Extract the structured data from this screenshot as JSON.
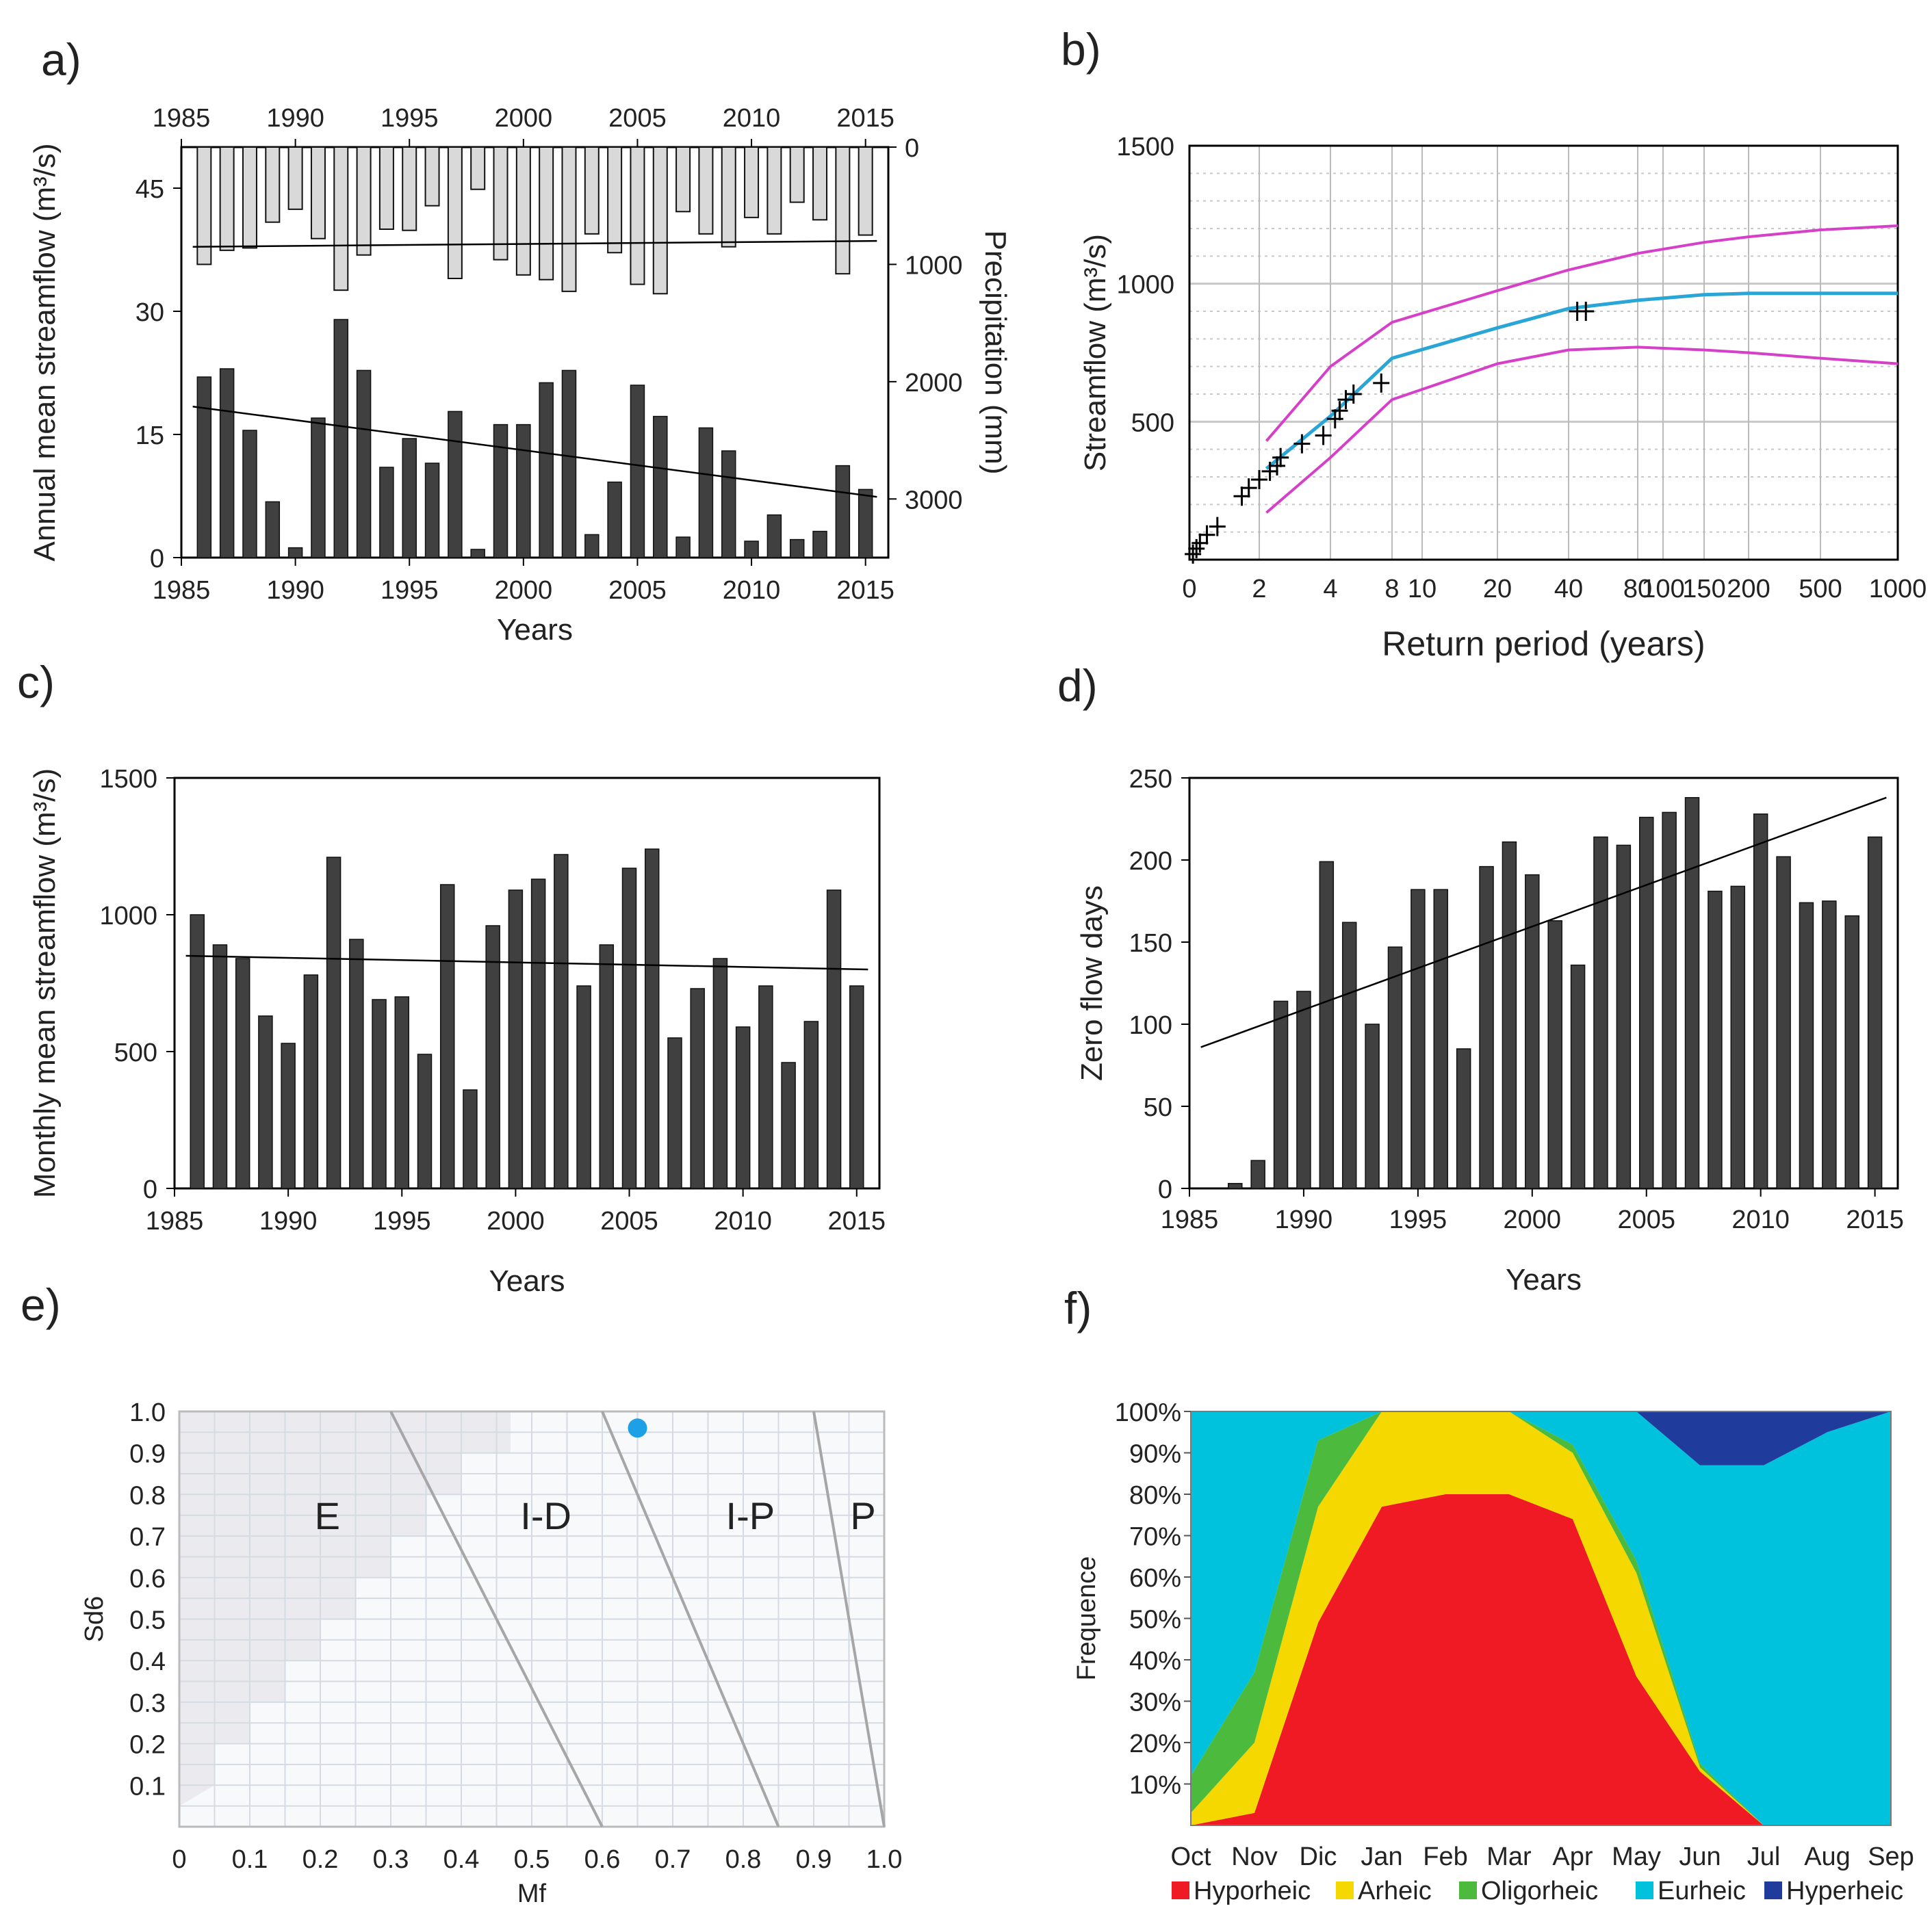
{
  "panel_labels": [
    "a)",
    "b)",
    "c)",
    "d)",
    "e)",
    "f)"
  ],
  "chart_data": [
    {
      "panel": "a",
      "type": "bar",
      "xlabel": "Years",
      "ylabel": "Annual mean streamflow (m³/s)",
      "ylabel_right": "Precipitation (mm)",
      "xlim": [
        1985,
        2016
      ],
      "ylim": [
        0,
        50
      ],
      "y2lim": [
        0,
        3500
      ],
      "xticks": [
        "1985",
        "1990",
        "1995",
        "2000",
        "2005",
        "2010",
        "2015"
      ],
      "yticks": [
        "0",
        "15",
        "30",
        "45"
      ],
      "y2ticks": [
        "0",
        "1000",
        "2000",
        "3000"
      ],
      "years": [
        1986,
        1987,
        1988,
        1989,
        1990,
        1991,
        1992,
        1993,
        1994,
        1995,
        1996,
        1997,
        1998,
        1999,
        2000,
        2001,
        2002,
        2003,
        2004,
        2005,
        2006,
        2007,
        2008,
        2009,
        2010,
        2011,
        2012,
        2013,
        2014,
        2015
      ],
      "streamflow": [
        22,
        23,
        15.5,
        6.8,
        1.2,
        17,
        29,
        22.8,
        11,
        14.5,
        11.5,
        17.8,
        1,
        16.2,
        16.2,
        21.3,
        22.8,
        2.8,
        9.2,
        21,
        17.2,
        2.5,
        15.8,
        13,
        2,
        5.2,
        2.2,
        3.2,
        11.2,
        8.3
      ],
      "precipitation": [
        1000,
        880,
        860,
        640,
        530,
        780,
        1220,
        920,
        700,
        710,
        500,
        1120,
        360,
        960,
        1090,
        1130,
        1230,
        740,
        900,
        1170,
        1250,
        550,
        740,
        850,
        600,
        740,
        470,
        620,
        1080,
        750
      ],
      "streamflow_trend": [
        18.4,
        7.4
      ],
      "precipitation_trend": [
        850,
        800
      ]
    },
    {
      "panel": "b",
      "type": "line",
      "xlabel": "Return period (years)",
      "ylabel": "Streamflow (m³/s)",
      "ylim": [
        0,
        1500
      ],
      "xticks": [
        "0",
        "2",
        "4",
        "8",
        "10",
        "20",
        "40",
        "80",
        "100",
        "150",
        "200",
        "500",
        "1000"
      ],
      "yticks": [
        "500",
        "1000",
        "1500"
      ],
      "series": [
        {
          "name": "fitted",
          "color": "#2aa6d6",
          "x": [
            2.2,
            4,
            8,
            20,
            40,
            80,
            150,
            200,
            500,
            1000
          ],
          "y": [
            330,
            520,
            730,
            840,
            910,
            940,
            960,
            965,
            965,
            965
          ]
        },
        {
          "name": "upper",
          "color": "#d63fc8",
          "x": [
            2.2,
            4,
            8,
            20,
            40,
            80,
            150,
            200,
            500,
            1000
          ],
          "y": [
            430,
            700,
            860,
            975,
            1050,
            1110,
            1150,
            1170,
            1195,
            1210
          ]
        },
        {
          "name": "lower",
          "color": "#d63fc8",
          "x": [
            2.2,
            4,
            8,
            20,
            40,
            80,
            150,
            200,
            500,
            1000
          ],
          "y": [
            170,
            370,
            580,
            710,
            760,
            770,
            760,
            750,
            730,
            710
          ]
        },
        {
          "name": "observed",
          "marker": "+",
          "x": [
            0.1,
            0.2,
            0.3,
            0.5,
            0.8,
            1.5,
            1.7,
            2.0,
            2.3,
            2.5,
            2.6,
            3.2,
            3.8,
            4.3,
            4.6,
            5.0,
            5.5,
            7.3,
            45,
            50
          ],
          "y": [
            20,
            40,
            60,
            90,
            120,
            230,
            260,
            290,
            320,
            340,
            370,
            420,
            450,
            510,
            540,
            580,
            600,
            640,
            900,
            900
          ]
        }
      ]
    },
    {
      "panel": "c",
      "type": "bar",
      "xlabel": "Years",
      "ylabel": "Monthly mean streamflow (m³/s)",
      "xlim": [
        1985,
        2016
      ],
      "ylim": [
        0,
        1500
      ],
      "xticks": [
        "1985",
        "1990",
        "1995",
        "2000",
        "2005",
        "2010",
        "2015"
      ],
      "yticks": [
        "0",
        "500",
        "1000",
        "1500"
      ],
      "years": [
        1986,
        1987,
        1988,
        1989,
        1990,
        1991,
        1992,
        1993,
        1994,
        1995,
        1996,
        1997,
        1998,
        1999,
        2000,
        2001,
        2002,
        2003,
        2004,
        2005,
        2006,
        2007,
        2008,
        2009,
        2010,
        2011,
        2012,
        2013,
        2014,
        2015
      ],
      "values": [
        1000,
        890,
        840,
        630,
        530,
        780,
        1210,
        910,
        690,
        700,
        490,
        1110,
        360,
        960,
        1090,
        1130,
        1220,
        740,
        890,
        1170,
        1240,
        550,
        730,
        840,
        590,
        740,
        460,
        610,
        1090,
        740
      ],
      "trend": [
        850,
        800
      ]
    },
    {
      "panel": "d",
      "type": "bar",
      "xlabel": "Years",
      "ylabel": "Zero flow days",
      "xlim": [
        1985,
        2016
      ],
      "ylim": [
        0,
        250
      ],
      "xticks": [
        "1985",
        "1990",
        "1995",
        "2000",
        "2005",
        "2010",
        "2015"
      ],
      "yticks": [
        "0",
        "50",
        "100",
        "150",
        "200",
        "250"
      ],
      "years": [
        1987,
        1988,
        1989,
        1990,
        1991,
        1992,
        1993,
        1994,
        1995,
        1996,
        1997,
        1998,
        1999,
        2000,
        2001,
        2002,
        2003,
        2004,
        2005,
        2006,
        2007,
        2008,
        2009,
        2010,
        2011,
        2012,
        2013,
        2014,
        2015
      ],
      "values": [
        3,
        17,
        114,
        120,
        199,
        162,
        100,
        147,
        182,
        182,
        85,
        196,
        211,
        191,
        163,
        136,
        214,
        209,
        226,
        229,
        238,
        181,
        184,
        228,
        202,
        174,
        175,
        166,
        214
      ],
      "trend": [
        86,
        238
      ]
    },
    {
      "panel": "e",
      "type": "scatter",
      "xlabel": "Mf",
      "ylabel": "Sd6",
      "xlim": [
        0,
        1.0
      ],
      "ylim": [
        0,
        1.0
      ],
      "xticks": [
        "0",
        "0.1",
        "0.2",
        "0.3",
        "0.4",
        "0.5",
        "0.6",
        "0.7",
        "0.8",
        "0.9",
        "1.0"
      ],
      "yticks": [
        "0.1",
        "0.2",
        "0.3",
        "0.4",
        "0.5",
        "0.6",
        "0.7",
        "0.8",
        "0.9",
        "1.0"
      ],
      "regions": [
        "E",
        "I-D",
        "I-P",
        "P"
      ],
      "boundaries": [
        [
          [
            0.3,
            1.0
          ],
          [
            0.6,
            0.0
          ]
        ],
        [
          [
            0.6,
            1.0
          ],
          [
            0.85,
            0.0
          ]
        ],
        [
          [
            0.9,
            1.0
          ],
          [
            1.0,
            0.0
          ]
        ]
      ],
      "points": [
        {
          "x": 0.65,
          "y": 0.96,
          "color": "#1ea0e6"
        }
      ]
    },
    {
      "panel": "f",
      "type": "area",
      "ylabel": "Frequence",
      "ylim": [
        0,
        100
      ],
      "yticks": [
        "10%",
        "20%",
        "30%",
        "40%",
        "50%",
        "60%",
        "70%",
        "80%",
        "90%",
        "100%"
      ],
      "categories": [
        "Oct",
        "Nov",
        "Dic",
        "Jan",
        "Feb",
        "Mar",
        "Apr",
        "May",
        "Jun",
        "Jul",
        "Aug",
        "Sep"
      ],
      "series": [
        {
          "name": "Hyporheic",
          "color": "#f01a24",
          "values": [
            0,
            3,
            49,
            77,
            80,
            80,
            74,
            36,
            13,
            0,
            0,
            0
          ]
        },
        {
          "name": "Arheic",
          "color": "#f4d800",
          "values": [
            3,
            17,
            28,
            23,
            20,
            20,
            16,
            25,
            1,
            0,
            0,
            0
          ]
        },
        {
          "name": "Oligorheic",
          "color": "#4cba3c",
          "values": [
            9,
            17,
            16,
            0,
            0,
            0,
            2,
            3,
            1,
            0,
            0,
            0
          ]
        },
        {
          "name": "Eurheic",
          "color": "#00c2dc",
          "values": [
            88,
            63,
            7,
            0,
            0,
            0,
            8,
            36,
            72,
            87,
            95,
            100
          ]
        },
        {
          "name": "Hyperheic",
          "color": "#1f3c9c",
          "values": [
            0,
            0,
            0,
            0,
            0,
            0,
            0,
            0,
            13,
            13,
            5,
            0
          ]
        }
      ]
    }
  ]
}
